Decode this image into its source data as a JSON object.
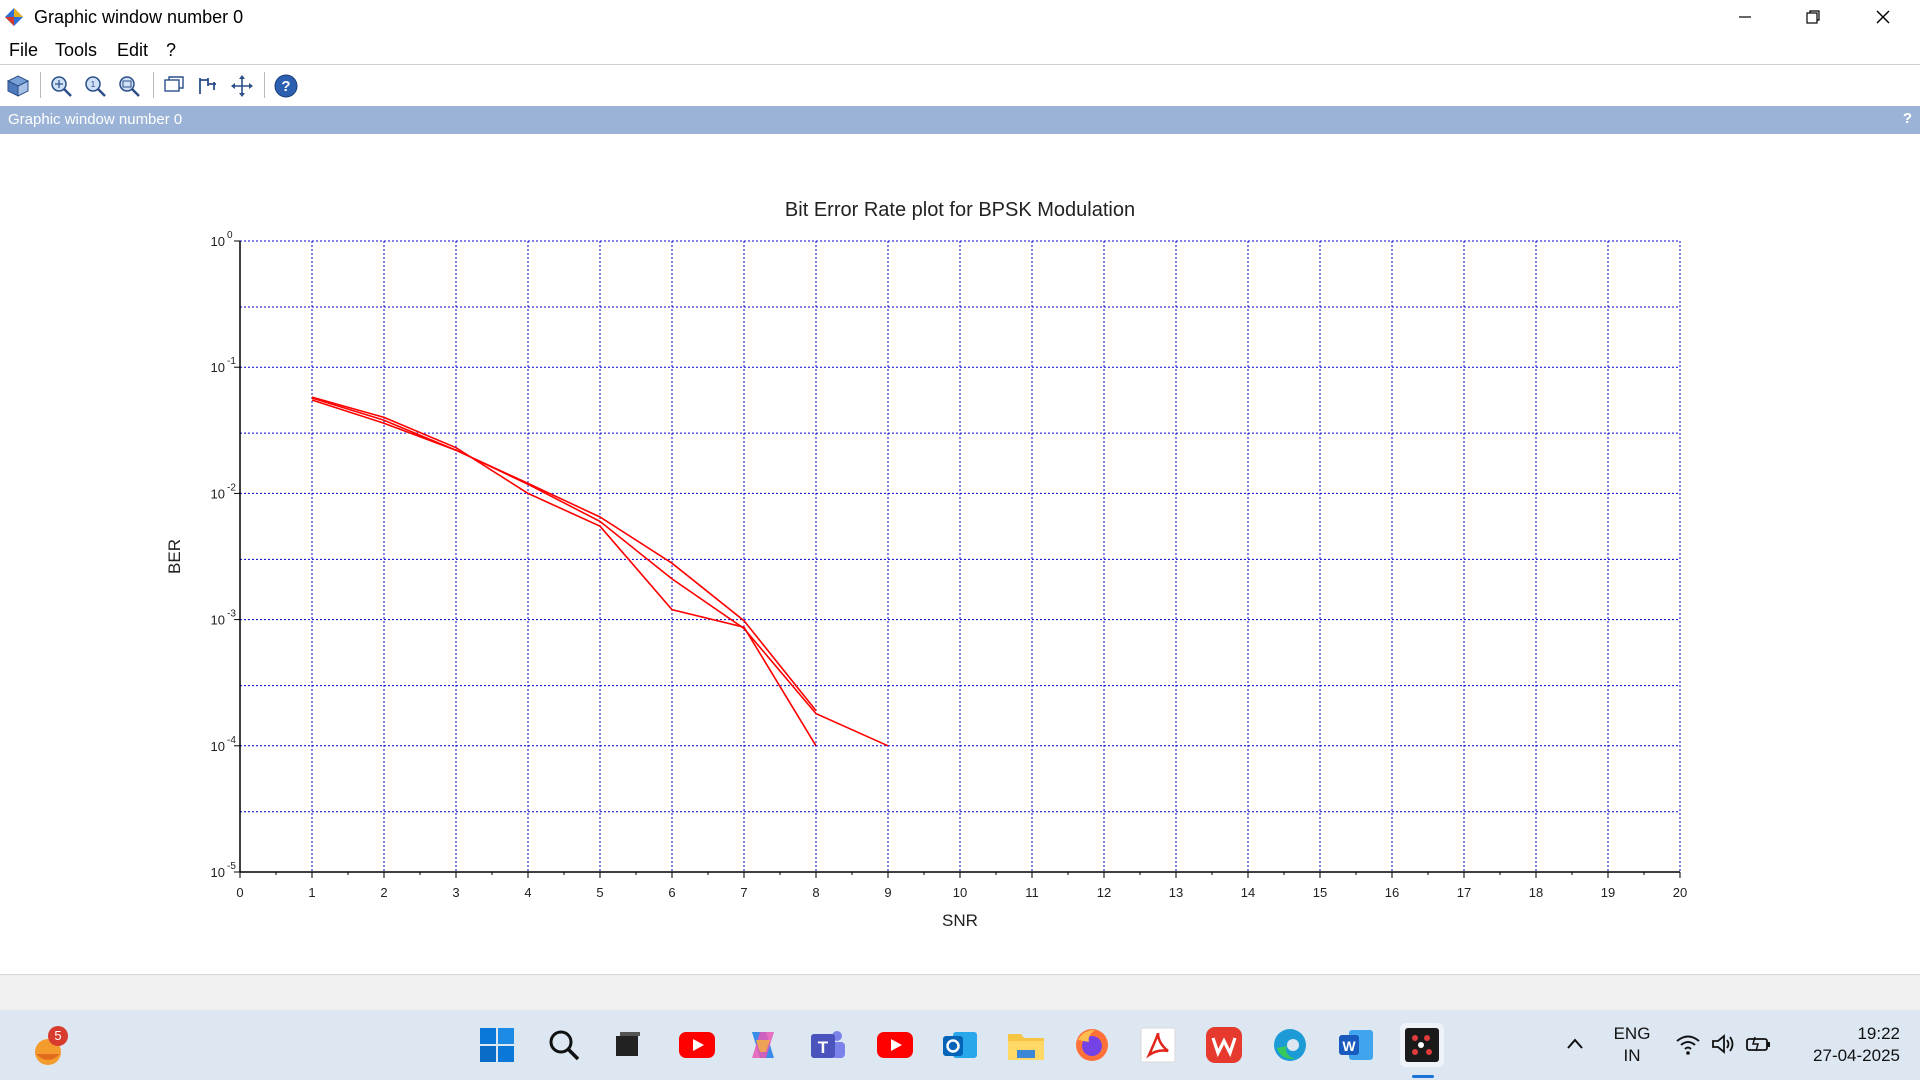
{
  "window": {
    "title": "Graphic window number 0",
    "controls": [
      "minimize",
      "restore",
      "close"
    ]
  },
  "menu": {
    "items": [
      "File",
      "Tools",
      "Edit",
      "?"
    ]
  },
  "toolbar": {
    "icons": [
      "figure-editor-icon",
      "zoom-in-icon",
      "zoom-reset-icon",
      "zoom-area-icon",
      "datatip-icon",
      "rotate-icon",
      "pan-icon",
      "help-icon"
    ]
  },
  "panel": {
    "title": "Graphic window number 0",
    "help": "?"
  },
  "chart_data": {
    "type": "line",
    "title": "Bit Error Rate plot for BPSK Modulation",
    "xlabel": "SNR",
    "ylabel": "BER",
    "xlim": [
      0,
      20
    ],
    "ylim": [
      1e-05,
      1
    ],
    "yscale": "log",
    "grid": true,
    "grid_color": "#0000cc",
    "line_color": "#ff0000",
    "x_ticks": [
      "0",
      "1",
      "2",
      "3",
      "4",
      "5",
      "6",
      "7",
      "8",
      "9",
      "10",
      "11",
      "12",
      "13",
      "14",
      "15",
      "16",
      "17",
      "18",
      "19",
      "20"
    ],
    "y_ticks": [
      {
        "base": "10",
        "exp": "0"
      },
      {
        "base": "10",
        "exp": "-1"
      },
      {
        "base": "10",
        "exp": "-2"
      },
      {
        "base": "10",
        "exp": "-3"
      },
      {
        "base": "10",
        "exp": "-4"
      },
      {
        "base": "10",
        "exp": "-5"
      }
    ],
    "series": [
      {
        "x": [
          1,
          2,
          3,
          4,
          5,
          6,
          7,
          8
        ],
        "y": [
          0.058,
          0.04,
          0.023,
          0.01,
          0.0055,
          0.0012,
          0.00087,
          0.0001
        ]
      },
      {
        "x": [
          1,
          2,
          3,
          4,
          5,
          6,
          7,
          8,
          9
        ],
        "y": [
          0.055,
          0.036,
          0.022,
          0.0118,
          0.006,
          0.0021,
          0.00085,
          0.00018,
          0.0001
        ]
      },
      {
        "x": [
          1,
          2,
          3,
          4,
          5,
          6,
          7,
          8
        ],
        "y": [
          0.057,
          0.038,
          0.022,
          0.012,
          0.0065,
          0.0028,
          0.00098,
          0.00019
        ]
      }
    ]
  },
  "taskbar": {
    "widget_badge": "5",
    "apps": [
      "windows-start-icon",
      "search-icon",
      "task-view-icon",
      "youtube-icon",
      "copilot-icon",
      "teams-icon",
      "youtube-icon",
      "outlook-icon",
      "file-explorer-icon",
      "firefox-icon",
      "acrobat-icon",
      "wps-icon",
      "edge-icon",
      "word-icon",
      "scilab-icon"
    ],
    "language": "ENG",
    "region": "IN",
    "time": "19:22",
    "date": "27-04-2025"
  }
}
